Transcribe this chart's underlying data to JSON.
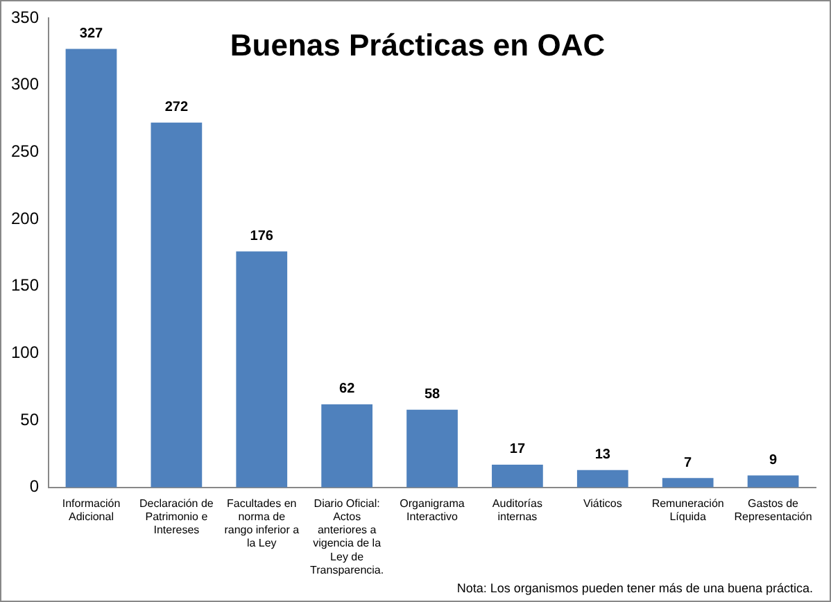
{
  "chart_data": {
    "type": "bar",
    "title": "Buenas Prácticas en OAC",
    "categories": [
      "Información Adicional",
      "Declaración de Patrimonio e Intereses",
      "Facultades en norma de rango inferior a la Ley",
      "Diario Oficial: Actos anteriores a vigencia de la Ley de Transparencia.",
      "Organigrama Interactivo",
      "Auditorías internas",
      "Viáticos",
      "Remuneración Líquida",
      "Gastos de Representación"
    ],
    "values": [
      327,
      272,
      176,
      62,
      58,
      17,
      13,
      7,
      9
    ],
    "color": "#4f81bd",
    "data_labels": true,
    "grid": false,
    "legend": false,
    "ylim": [
      0,
      350
    ],
    "yticks": [
      0,
      50,
      100,
      150,
      200,
      250,
      300,
      350
    ],
    "annotations": [
      "Nota: Los organismos pueden tener más de una buena práctica."
    ]
  }
}
